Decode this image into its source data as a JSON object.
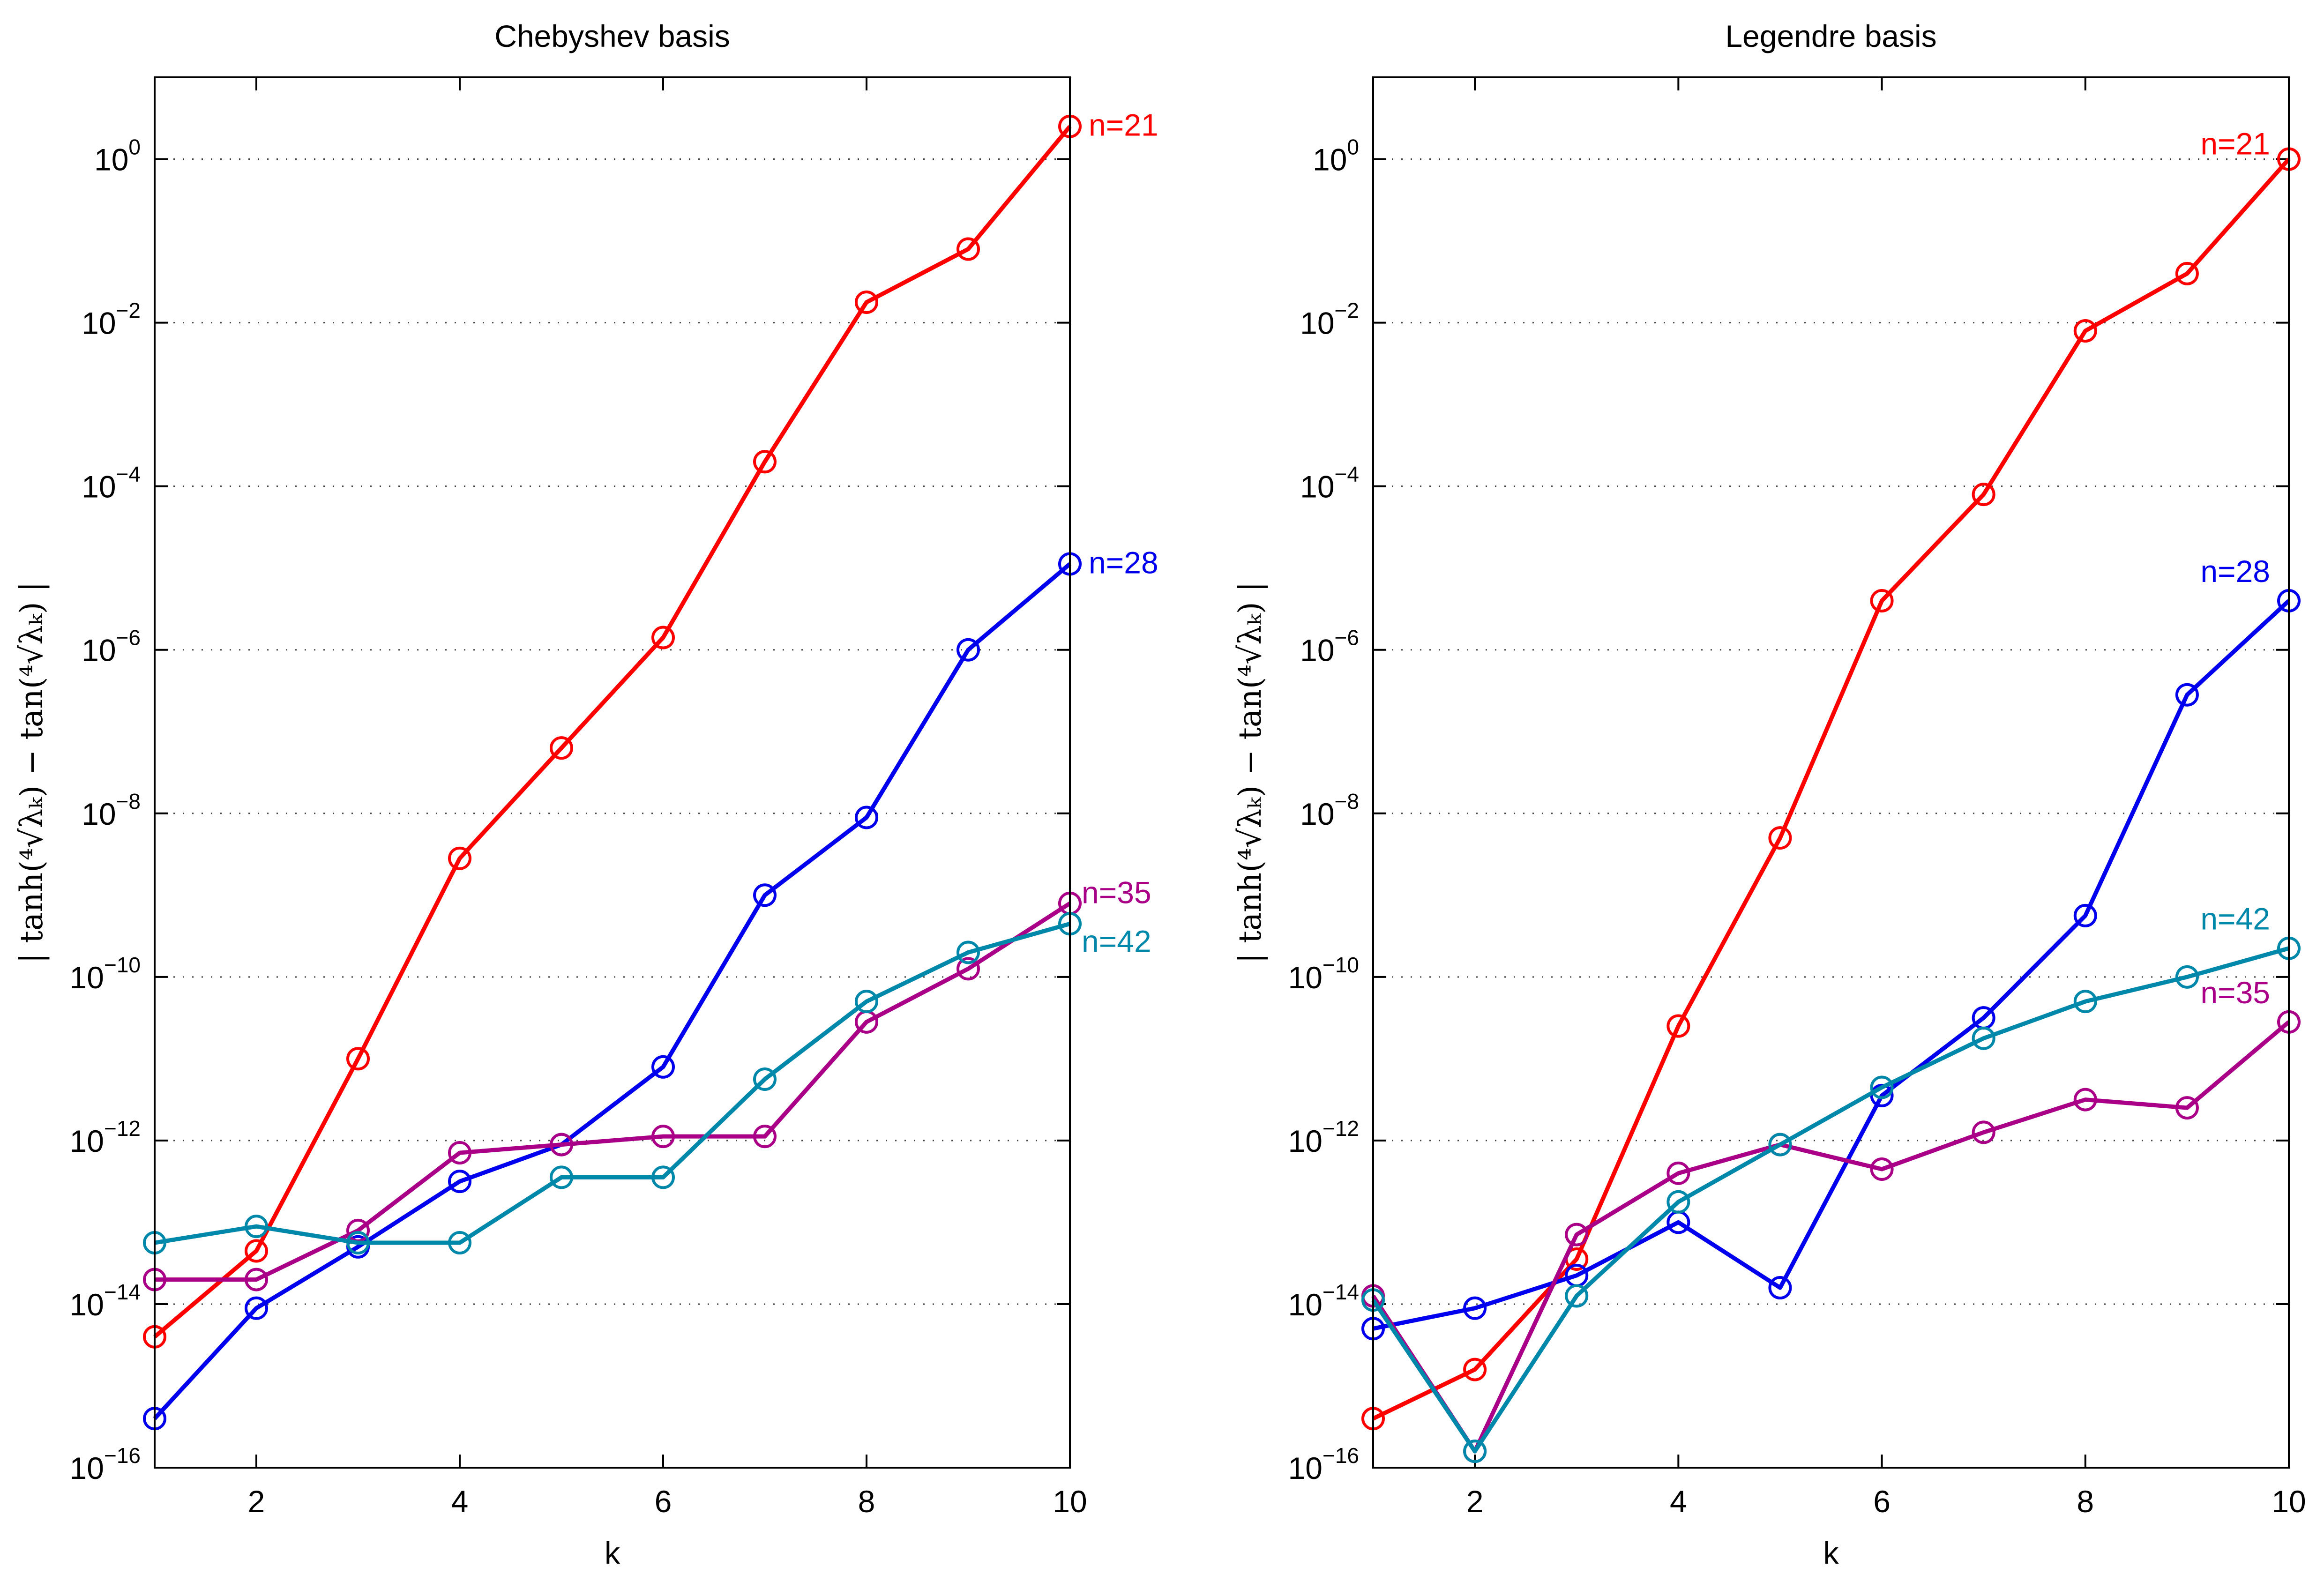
{
  "chart_data": [
    {
      "type": "line",
      "title": "Chebyshev basis",
      "xlabel": "k",
      "ylabel": "| tanh(⁴√λₖ) − tan(⁴√λₖ) |",
      "yscale": "log",
      "xlim": [
        1,
        10
      ],
      "ylim_exponent": [
        -16,
        1
      ],
      "x_ticks": [
        2,
        4,
        6,
        8,
        10
      ],
      "y_tick_exponents": [
        -16,
        -14,
        -12,
        -10,
        -8,
        -6,
        -4,
        -2,
        0
      ],
      "y_tick_base": "10",
      "gridlines": "horizontal dotted",
      "x": [
        1,
        2,
        3,
        4,
        5,
        6,
        7,
        8,
        9,
        10
      ],
      "series": [
        {
          "name": "n=21",
          "color": "#ff0000",
          "log10_values": [
            -14.4,
            -13.35,
            -11.0,
            -8.55,
            -7.2,
            -5.85,
            -3.7,
            -1.75,
            -1.1,
            0.4
          ]
        },
        {
          "name": "n=28",
          "color": "#0000ee",
          "log10_values": [
            -15.4,
            -14.05,
            -13.3,
            -12.5,
            -12.05,
            -11.1,
            -9.0,
            -8.05,
            -6.0,
            -4.95
          ]
        },
        {
          "name": "n=35",
          "color": "#aa0088",
          "log10_values": [
            -13.7,
            -13.7,
            -13.1,
            -12.15,
            -12.05,
            -11.95,
            -11.95,
            -10.55,
            -9.9,
            -9.1
          ]
        },
        {
          "name": "n=42",
          "color": "#0088aa",
          "log10_values": [
            -13.25,
            -13.05,
            -13.25,
            -13.25,
            -12.45,
            -12.45,
            -11.25,
            -10.3,
            -9.7,
            -9.35
          ]
        }
      ]
    },
    {
      "type": "line",
      "title": "Legendre basis",
      "xlabel": "k",
      "ylabel": "| tanh(⁴√λₖ) − tan(⁴√λₖ) |",
      "yscale": "log",
      "xlim": [
        1,
        10
      ],
      "ylim_exponent": [
        -16,
        1
      ],
      "x_ticks": [
        2,
        4,
        6,
        8,
        10
      ],
      "y_tick_exponents": [
        -16,
        -14,
        -12,
        -10,
        -8,
        -6,
        -4,
        -2,
        0
      ],
      "y_tick_base": "10",
      "gridlines": "horizontal dotted",
      "x": [
        1,
        2,
        3,
        4,
        5,
        6,
        7,
        8,
        9,
        10
      ],
      "series": [
        {
          "name": "n=21",
          "color": "#ff0000",
          "log10_values": [
            -15.4,
            -14.8,
            -13.45,
            -10.6,
            -8.3,
            -5.4,
            -4.1,
            -2.1,
            -1.4,
            0.0
          ]
        },
        {
          "name": "n=28",
          "color": "#0000ee",
          "log10_values": [
            -14.3,
            -14.05,
            -13.65,
            -13.0,
            -13.8,
            -11.45,
            -10.5,
            -9.25,
            -6.55,
            -5.4
          ]
        },
        {
          "name": "n=35",
          "color": "#aa0088",
          "log10_values": [
            -13.9,
            -15.8,
            -13.15,
            -12.4,
            -12.05,
            -12.35,
            -11.9,
            -11.5,
            -11.6,
            -10.55
          ]
        },
        {
          "name": "n=42",
          "color": "#0088aa",
          "log10_values": [
            -13.95,
            -15.8,
            -13.9,
            -12.75,
            -12.05,
            -11.35,
            -10.75,
            -10.3,
            -10.0,
            -9.65
          ]
        }
      ]
    }
  ]
}
